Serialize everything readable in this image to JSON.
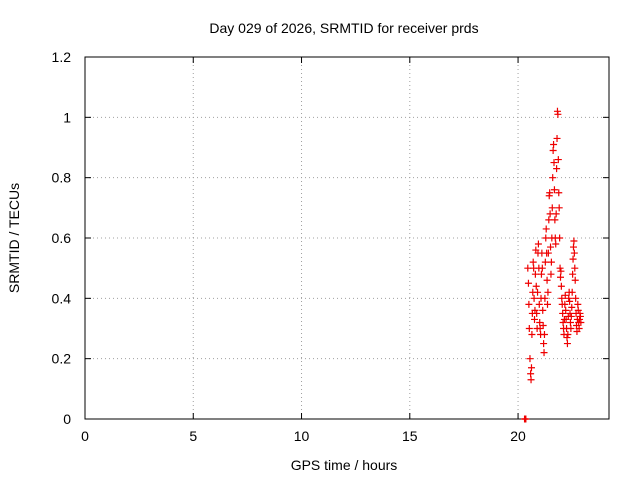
{
  "chart_data": {
    "type": "scatter",
    "title": "Day 029 of 2026, SRMTID for receiver prds",
    "xlabel": "GPS time / hours",
    "ylabel": "SRMTID / TECUs",
    "xlim": [
      0,
      24.2
    ],
    "ylim": [
      0,
      1.2
    ],
    "x_ticks": [
      0,
      5,
      10,
      15,
      20
    ],
    "x_tick_labels": [
      "0",
      "5",
      "10",
      "15",
      "20"
    ],
    "y_ticks": [
      0,
      0.2,
      0.4,
      0.6,
      0.8,
      1.0,
      1.2
    ],
    "y_tick_labels": [
      "0",
      "0.2",
      "0.4",
      "0.6",
      "0.8",
      "1",
      "1.2"
    ],
    "grid": true,
    "marker": "plus",
    "series": [
      {
        "name": "SRMTID",
        "color": "#ee0000",
        "x": [
          20.3,
          20.33,
          20.36,
          20.45,
          20.48,
          20.5,
          20.52,
          20.55,
          20.58,
          20.6,
          20.62,
          20.64,
          20.66,
          20.68,
          20.7,
          20.72,
          20.74,
          20.76,
          20.78,
          20.8,
          20.82,
          20.84,
          20.86,
          20.88,
          20.9,
          20.92,
          20.94,
          20.96,
          20.98,
          21.0,
          21.02,
          21.04,
          21.06,
          21.08,
          21.1,
          21.12,
          21.14,
          21.16,
          21.18,
          21.2,
          21.22,
          21.24,
          21.26,
          21.28,
          21.3,
          21.32,
          21.34,
          21.36,
          21.38,
          21.4,
          21.42,
          21.44,
          21.46,
          21.48,
          21.5,
          21.52,
          21.54,
          21.56,
          21.58,
          21.6,
          21.62,
          21.64,
          21.66,
          21.68,
          21.7,
          21.72,
          21.74,
          21.76,
          21.78,
          21.8,
          21.82,
          21.84,
          21.86,
          21.88,
          21.9,
          21.92,
          21.94,
          21.96,
          21.98,
          22.0,
          22.02,
          22.04,
          22.06,
          22.08,
          22.1,
          22.12,
          22.14,
          22.16,
          22.18,
          22.2,
          22.22,
          22.24,
          22.26,
          22.28,
          22.3,
          22.32,
          22.34,
          22.36,
          22.38,
          22.4,
          22.42,
          22.44,
          22.46,
          22.48,
          22.5,
          22.52,
          22.54,
          22.56,
          22.58,
          22.6,
          22.62,
          22.64,
          22.66,
          22.68,
          22.7,
          22.72,
          22.74,
          22.76,
          22.78,
          22.8,
          22.82,
          22.84,
          22.86,
          22.88,
          22.9
        ],
        "y": [
          0.0,
          0.0,
          0.0,
          0.5,
          0.45,
          0.38,
          0.3,
          0.2,
          0.15,
          0.13,
          0.17,
          0.28,
          0.35,
          0.42,
          0.52,
          0.5,
          0.4,
          0.33,
          0.36,
          0.48,
          0.56,
          0.44,
          0.35,
          0.3,
          0.42,
          0.55,
          0.58,
          0.5,
          0.38,
          0.32,
          0.3,
          0.28,
          0.4,
          0.48,
          0.55,
          0.5,
          0.36,
          0.31,
          0.25,
          0.22,
          0.28,
          0.4,
          0.52,
          0.6,
          0.63,
          0.55,
          0.46,
          0.38,
          0.42,
          0.55,
          0.66,
          0.74,
          0.75,
          0.68,
          0.57,
          0.48,
          0.52,
          0.6,
          0.7,
          0.8,
          0.89,
          0.91,
          0.85,
          0.76,
          0.66,
          0.6,
          0.58,
          0.68,
          0.83,
          0.93,
          1.02,
          1.01,
          0.86,
          0.75,
          0.7,
          0.6,
          0.5,
          0.47,
          0.49,
          0.44,
          0.4,
          0.38,
          0.35,
          0.32,
          0.3,
          0.28,
          0.33,
          0.38,
          0.41,
          0.36,
          0.33,
          0.3,
          0.27,
          0.25,
          0.28,
          0.34,
          0.4,
          0.42,
          0.39,
          0.35,
          0.32,
          0.3,
          0.34,
          0.37,
          0.42,
          0.48,
          0.53,
          0.57,
          0.59,
          0.55,
          0.5,
          0.46,
          0.4,
          0.35,
          0.31,
          0.29,
          0.33,
          0.38,
          0.36,
          0.32,
          0.3,
          0.33,
          0.35,
          0.34,
          0.32
        ]
      }
    ]
  }
}
